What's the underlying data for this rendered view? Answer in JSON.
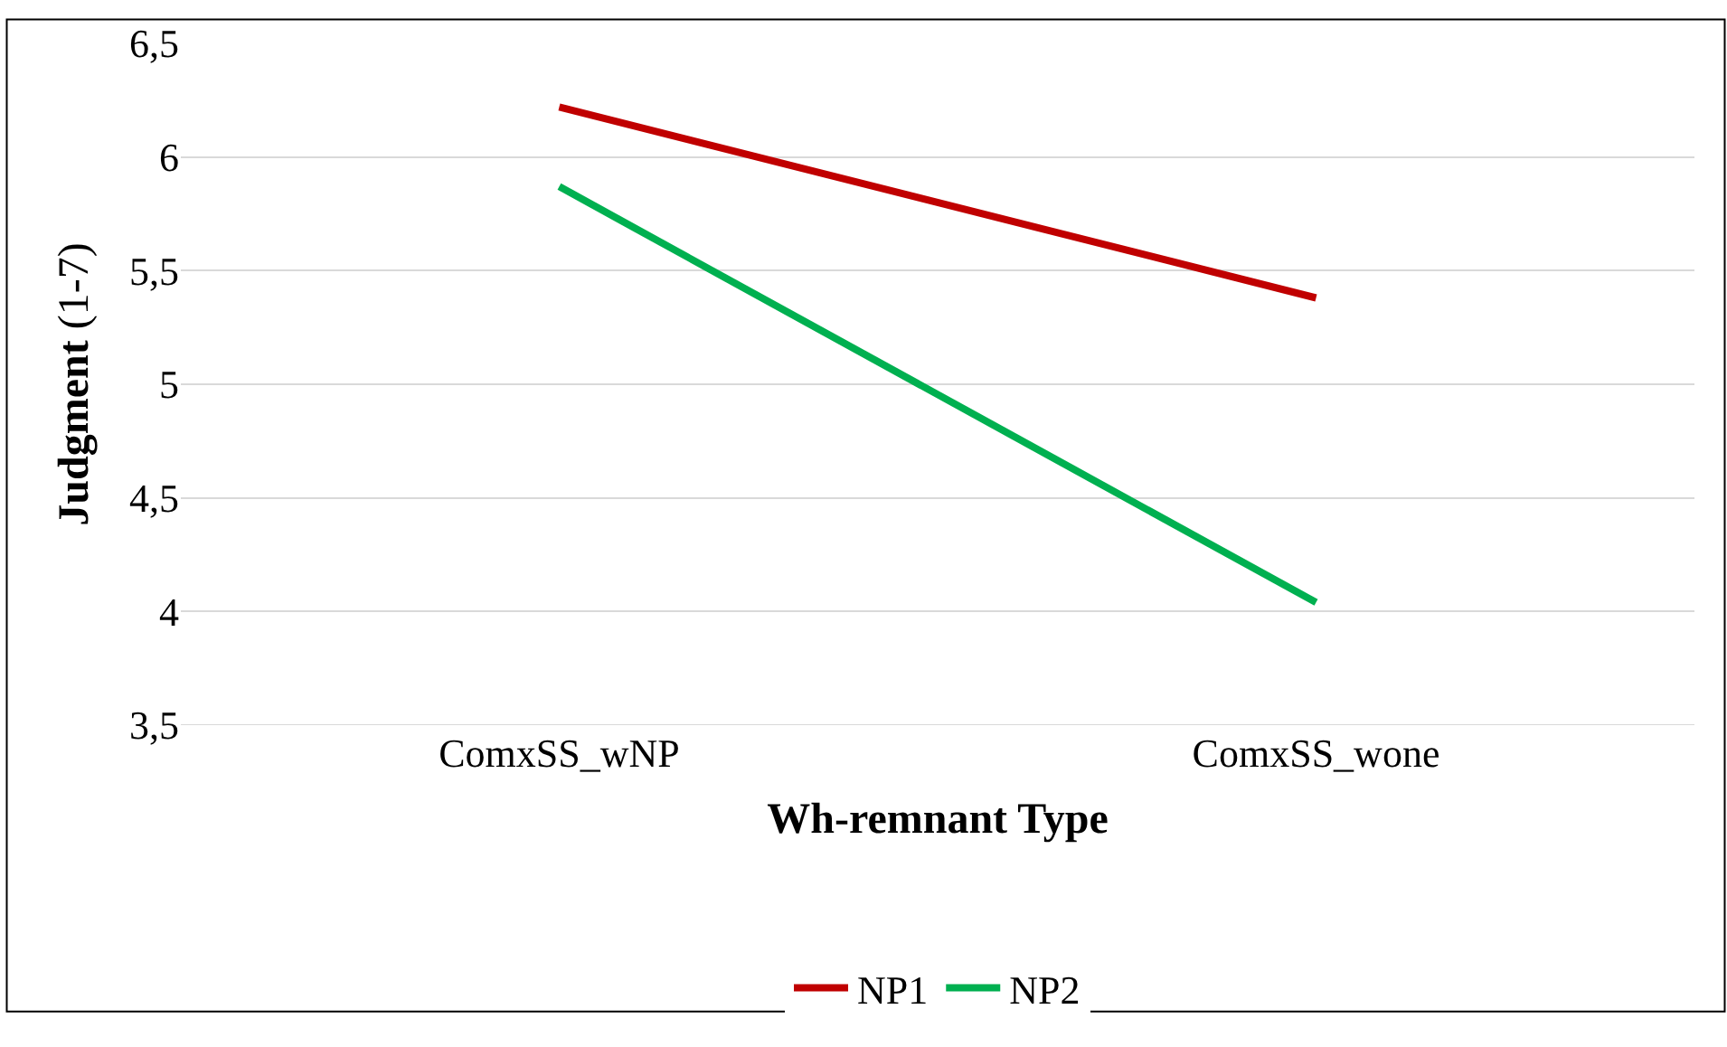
{
  "chart_data": {
    "type": "line",
    "xlabel": "Wh-remnant Type",
    "ylabel": "Judgment (1-7)",
    "categories": [
      "ComxSS_wNP",
      "ComxSS_wone"
    ],
    "series": [
      {
        "name": "NP1",
        "color": "#c00000",
        "values": [
          6.22,
          5.38
        ]
      },
      {
        "name": "NP2",
        "color": "#00b050",
        "values": [
          5.87,
          4.04
        ]
      }
    ],
    "ylim": [
      3.5,
      6.5
    ],
    "yticks": [
      {
        "value": 3.5,
        "label": "3,5"
      },
      4,
      {
        "value": 4.5,
        "label": "4,5"
      },
      5,
      {
        "value": 5.5,
        "label": "5,5"
      },
      6,
      {
        "value": 6.5,
        "label": "6,5"
      }
    ],
    "grid": "y",
    "legend": "bottom",
    "marker": "none",
    "line_style": "solid"
  }
}
